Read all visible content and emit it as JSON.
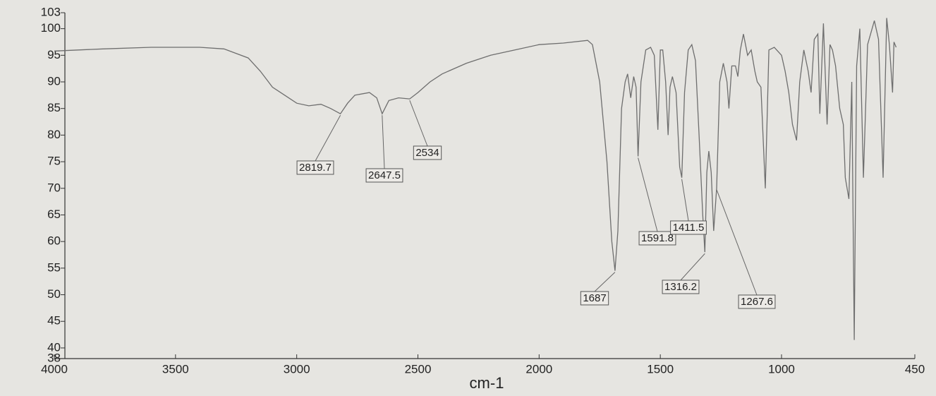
{
  "chart_data": {
    "type": "line",
    "xlabel": "cm-1",
    "xlim": [
      4000,
      450
    ],
    "ylim": [
      38,
      103
    ],
    "xticks": [
      4000,
      3500,
      3000,
      2500,
      2000,
      1500,
      1000,
      450
    ],
    "yticks": [
      38,
      40,
      45,
      50,
      55,
      60,
      65,
      70,
      75,
      80,
      85,
      90,
      95,
      100,
      103
    ],
    "grid": false,
    "color": "#6e6e6e",
    "x": [
      4000,
      3800,
      3600,
      3400,
      3300,
      3200,
      3150,
      3100,
      3050,
      3000,
      2950,
      2900,
      2860,
      2819.7,
      2790,
      2760,
      2700,
      2670,
      2647.5,
      2620,
      2580,
      2534,
      2500,
      2450,
      2400,
      2300,
      2200,
      2100,
      2000,
      1900,
      1800,
      1780,
      1750,
      1720,
      1700,
      1687,
      1675,
      1660,
      1645,
      1635,
      1622,
      1610,
      1600,
      1591.8,
      1580,
      1560,
      1540,
      1525,
      1510,
      1500,
      1490,
      1478,
      1468,
      1460,
      1450,
      1435,
      1420,
      1411.5,
      1400,
      1385,
      1370,
      1355,
      1340,
      1325,
      1316.2,
      1308,
      1300,
      1290,
      1280,
      1267.6,
      1255,
      1240,
      1225,
      1217,
      1205,
      1190,
      1180,
      1170,
      1157,
      1140,
      1125,
      1110,
      1100,
      1085,
      1067,
      1052,
      1030,
      1000,
      985,
      970,
      955,
      938,
      925,
      908,
      890,
      878,
      865,
      850,
      842,
      827,
      812,
      800,
      790,
      777,
      760,
      745,
      737,
      722,
      710,
      700,
      690,
      677,
      662,
      645,
      617,
      600,
      581,
      566,
      555,
      542,
      536,
      527
    ],
    "values": [
      95.8,
      96.2,
      96.5,
      96.5,
      96.2,
      94.5,
      92,
      89,
      87.5,
      86,
      85.5,
      85.8,
      85,
      84,
      86,
      87.5,
      88,
      87,
      84,
      86.5,
      87,
      86.8,
      88,
      90,
      91.5,
      93.5,
      95,
      96,
      97,
      97.3,
      97.8,
      97,
      90,
      75,
      60,
      54.5,
      62,
      85,
      90,
      91.5,
      87,
      91,
      89,
      76,
      90,
      96,
      96.5,
      95,
      81,
      96,
      96,
      90,
      80,
      89,
      91,
      88,
      74,
      72,
      88,
      96,
      97,
      94,
      80,
      65,
      58,
      73,
      77,
      73,
      62,
      70,
      90,
      93.5,
      90,
      85,
      93,
      93,
      91,
      96,
      99,
      95,
      96,
      92,
      90,
      89,
      70,
      96,
      96.5,
      95,
      92,
      88,
      82,
      79,
      90,
      96,
      92,
      88,
      98,
      99,
      84,
      101,
      82,
      97,
      96,
      93,
      85,
      82,
      72,
      68,
      90,
      41.5,
      93,
      100,
      72,
      97,
      101.5,
      98,
      72,
      102,
      97,
      88,
      97.5,
      96.5
    ],
    "peak_labels": [
      2819.7,
      2647.5,
      2534,
      1687,
      1591.8,
      1411.5,
      1316.2,
      1267.6
    ]
  }
}
